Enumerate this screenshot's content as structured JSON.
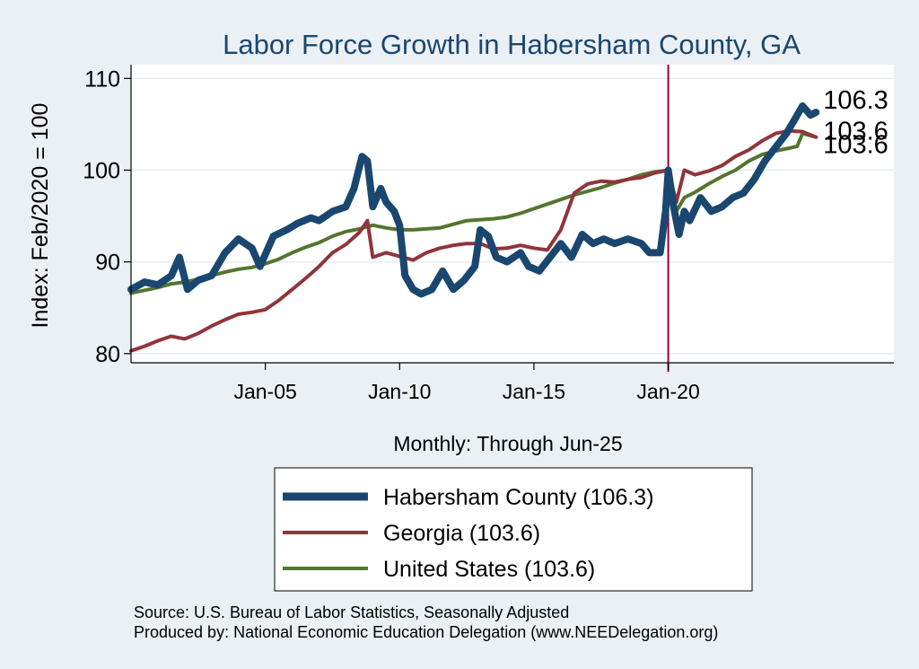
{
  "chart_data": {
    "type": "line",
    "title": "Labor Force Growth in Habersham  County, GA",
    "ylabel": "Index: Feb/2020 = 100",
    "xlabel": "Monthly: Through Jun-25",
    "ylim": [
      79,
      111.5
    ],
    "xlim": [
      2000.0,
      2028.4
    ],
    "yticks": [
      80,
      90,
      100,
      110
    ],
    "xticks": [
      {
        "label": "Jan-05",
        "value": 2005.0
      },
      {
        "label": "Jan-10",
        "value": 2010.0
      },
      {
        "label": "Jan-15",
        "value": 2015.0
      },
      {
        "label": "Jan-20",
        "value": 2020.0
      }
    ],
    "reference_line": {
      "x": 2020.0,
      "color": "#990033"
    },
    "grid": "horizontal",
    "legend_position": "bottom",
    "series": [
      {
        "name": "Habersham  County (106.3)",
        "color": "#1a476f",
        "end_label": "106.3",
        "points": [
          [
            2000.0,
            87.0
          ],
          [
            2000.5,
            87.8
          ],
          [
            2001.0,
            87.5
          ],
          [
            2001.5,
            88.5
          ],
          [
            2001.8,
            90.5
          ],
          [
            2002.1,
            87.0
          ],
          [
            2002.5,
            88.0
          ],
          [
            2003.0,
            88.5
          ],
          [
            2003.5,
            91.0
          ],
          [
            2004.0,
            92.5
          ],
          [
            2004.5,
            91.5
          ],
          [
            2004.8,
            89.5
          ],
          [
            2005.3,
            92.8
          ],
          [
            2005.8,
            93.5
          ],
          [
            2006.2,
            94.2
          ],
          [
            2006.7,
            94.8
          ],
          [
            2007.0,
            94.5
          ],
          [
            2007.5,
            95.5
          ],
          [
            2008.0,
            96.0
          ],
          [
            2008.3,
            98.0
          ],
          [
            2008.6,
            101.5
          ],
          [
            2008.8,
            101.0
          ],
          [
            2009.0,
            96.0
          ],
          [
            2009.3,
            98.0
          ],
          [
            2009.5,
            96.5
          ],
          [
            2009.8,
            95.5
          ],
          [
            2010.0,
            94.0
          ],
          [
            2010.2,
            88.5
          ],
          [
            2010.5,
            87.0
          ],
          [
            2010.8,
            86.5
          ],
          [
            2011.2,
            87.0
          ],
          [
            2011.6,
            89.0
          ],
          [
            2012.0,
            87.0
          ],
          [
            2012.4,
            88.0
          ],
          [
            2012.8,
            89.5
          ],
          [
            2013.0,
            93.5
          ],
          [
            2013.3,
            92.8
          ],
          [
            2013.6,
            90.5
          ],
          [
            2014.0,
            90.0
          ],
          [
            2014.5,
            91.0
          ],
          [
            2014.8,
            89.5
          ],
          [
            2015.2,
            89.0
          ],
          [
            2015.6,
            90.5
          ],
          [
            2016.0,
            92.0
          ],
          [
            2016.4,
            90.5
          ],
          [
            2016.8,
            93.0
          ],
          [
            2017.2,
            92.0
          ],
          [
            2017.6,
            92.5
          ],
          [
            2018.0,
            92.0
          ],
          [
            2018.5,
            92.5
          ],
          [
            2019.0,
            92.0
          ],
          [
            2019.3,
            91.0
          ],
          [
            2019.7,
            91.0
          ],
          [
            2019.9,
            95.5
          ],
          [
            2020.0,
            100.0
          ],
          [
            2020.2,
            96.0
          ],
          [
            2020.4,
            93.0
          ],
          [
            2020.6,
            95.5
          ],
          [
            2020.8,
            94.5
          ],
          [
            2021.2,
            97.0
          ],
          [
            2021.6,
            95.5
          ],
          [
            2022.0,
            96.0
          ],
          [
            2022.4,
            97.0
          ],
          [
            2022.8,
            97.5
          ],
          [
            2023.2,
            99.0
          ],
          [
            2023.6,
            101.0
          ],
          [
            2024.0,
            102.5
          ],
          [
            2024.4,
            104.0
          ],
          [
            2024.7,
            105.5
          ],
          [
            2025.0,
            107.0
          ],
          [
            2025.3,
            106.0
          ],
          [
            2025.5,
            106.3
          ]
        ]
      },
      {
        "name": "Georgia (103.6)",
        "color": "#90353b",
        "end_label": "103.6",
        "points": [
          [
            2000.0,
            80.3
          ],
          [
            2000.5,
            80.8
          ],
          [
            2001.0,
            81.4
          ],
          [
            2001.5,
            81.9
          ],
          [
            2002.0,
            81.6
          ],
          [
            2002.5,
            82.2
          ],
          [
            2003.0,
            83.0
          ],
          [
            2003.5,
            83.7
          ],
          [
            2004.0,
            84.3
          ],
          [
            2004.5,
            84.5
          ],
          [
            2005.0,
            84.8
          ],
          [
            2005.5,
            85.8
          ],
          [
            2006.0,
            87.0
          ],
          [
            2006.5,
            88.2
          ],
          [
            2007.0,
            89.5
          ],
          [
            2007.5,
            91.0
          ],
          [
            2008.0,
            91.9
          ],
          [
            2008.5,
            93.2
          ],
          [
            2008.8,
            94.5
          ],
          [
            2009.0,
            90.5
          ],
          [
            2009.5,
            91.0
          ],
          [
            2010.0,
            90.6
          ],
          [
            2010.5,
            90.2
          ],
          [
            2011.0,
            91.0
          ],
          [
            2011.5,
            91.5
          ],
          [
            2012.0,
            91.8
          ],
          [
            2012.5,
            92.0
          ],
          [
            2013.0,
            92.0
          ],
          [
            2013.5,
            91.4
          ],
          [
            2014.0,
            91.5
          ],
          [
            2014.5,
            91.8
          ],
          [
            2015.0,
            91.5
          ],
          [
            2015.5,
            91.3
          ],
          [
            2016.0,
            93.5
          ],
          [
            2016.5,
            97.5
          ],
          [
            2017.0,
            98.5
          ],
          [
            2017.5,
            98.8
          ],
          [
            2018.0,
            98.7
          ],
          [
            2018.5,
            99.0
          ],
          [
            2019.0,
            99.2
          ],
          [
            2019.5,
            99.7
          ],
          [
            2020.0,
            100.0
          ],
          [
            2020.3,
            96.5
          ],
          [
            2020.6,
            100.0
          ],
          [
            2021.0,
            99.5
          ],
          [
            2021.5,
            99.9
          ],
          [
            2022.0,
            100.5
          ],
          [
            2022.5,
            101.5
          ],
          [
            2023.0,
            102.2
          ],
          [
            2023.5,
            103.2
          ],
          [
            2024.0,
            104.0
          ],
          [
            2024.5,
            104.3
          ],
          [
            2025.0,
            104.2
          ],
          [
            2025.5,
            103.6
          ]
        ]
      },
      {
        "name": "United States (103.6)",
        "color": "#55752f",
        "end_label": "103.6",
        "points": [
          [
            2000.0,
            86.6
          ],
          [
            2000.5,
            86.9
          ],
          [
            2001.0,
            87.2
          ],
          [
            2001.5,
            87.6
          ],
          [
            2002.0,
            87.8
          ],
          [
            2002.5,
            88.1
          ],
          [
            2003.0,
            88.5
          ],
          [
            2003.5,
            88.9
          ],
          [
            2004.0,
            89.2
          ],
          [
            2004.5,
            89.4
          ],
          [
            2005.0,
            89.8
          ],
          [
            2005.5,
            90.3
          ],
          [
            2006.0,
            91.0
          ],
          [
            2006.5,
            91.6
          ],
          [
            2007.0,
            92.1
          ],
          [
            2007.5,
            92.8
          ],
          [
            2008.0,
            93.3
          ],
          [
            2008.5,
            93.6
          ],
          [
            2009.0,
            94.0
          ],
          [
            2009.5,
            93.7
          ],
          [
            2010.0,
            93.5
          ],
          [
            2010.5,
            93.5
          ],
          [
            2011.0,
            93.6
          ],
          [
            2011.5,
            93.7
          ],
          [
            2012.0,
            94.1
          ],
          [
            2012.5,
            94.5
          ],
          [
            2013.0,
            94.6
          ],
          [
            2013.5,
            94.7
          ],
          [
            2014.0,
            94.9
          ],
          [
            2014.5,
            95.3
          ],
          [
            2015.0,
            95.8
          ],
          [
            2015.5,
            96.3
          ],
          [
            2016.0,
            96.8
          ],
          [
            2016.5,
            97.3
          ],
          [
            2017.0,
            97.7
          ],
          [
            2017.5,
            98.1
          ],
          [
            2018.0,
            98.6
          ],
          [
            2018.5,
            99.0
          ],
          [
            2019.0,
            99.5
          ],
          [
            2019.5,
            99.8
          ],
          [
            2020.0,
            100.0
          ],
          [
            2020.3,
            95.5
          ],
          [
            2020.6,
            97.0
          ],
          [
            2021.0,
            97.6
          ],
          [
            2021.5,
            98.5
          ],
          [
            2022.0,
            99.3
          ],
          [
            2022.5,
            100.0
          ],
          [
            2023.0,
            101.0
          ],
          [
            2023.5,
            101.7
          ],
          [
            2024.0,
            102.1
          ],
          [
            2024.5,
            102.4
          ],
          [
            2024.8,
            102.6
          ],
          [
            2025.0,
            104.0
          ],
          [
            2025.5,
            103.6
          ]
        ]
      }
    ]
  },
  "footer": {
    "source": "Source: U.S. Bureau of Labor Statistics, Seasonally Adjusted",
    "produced_by": "Produced by: National Economic Education Delegation (www.NEEDelegation.org)"
  }
}
